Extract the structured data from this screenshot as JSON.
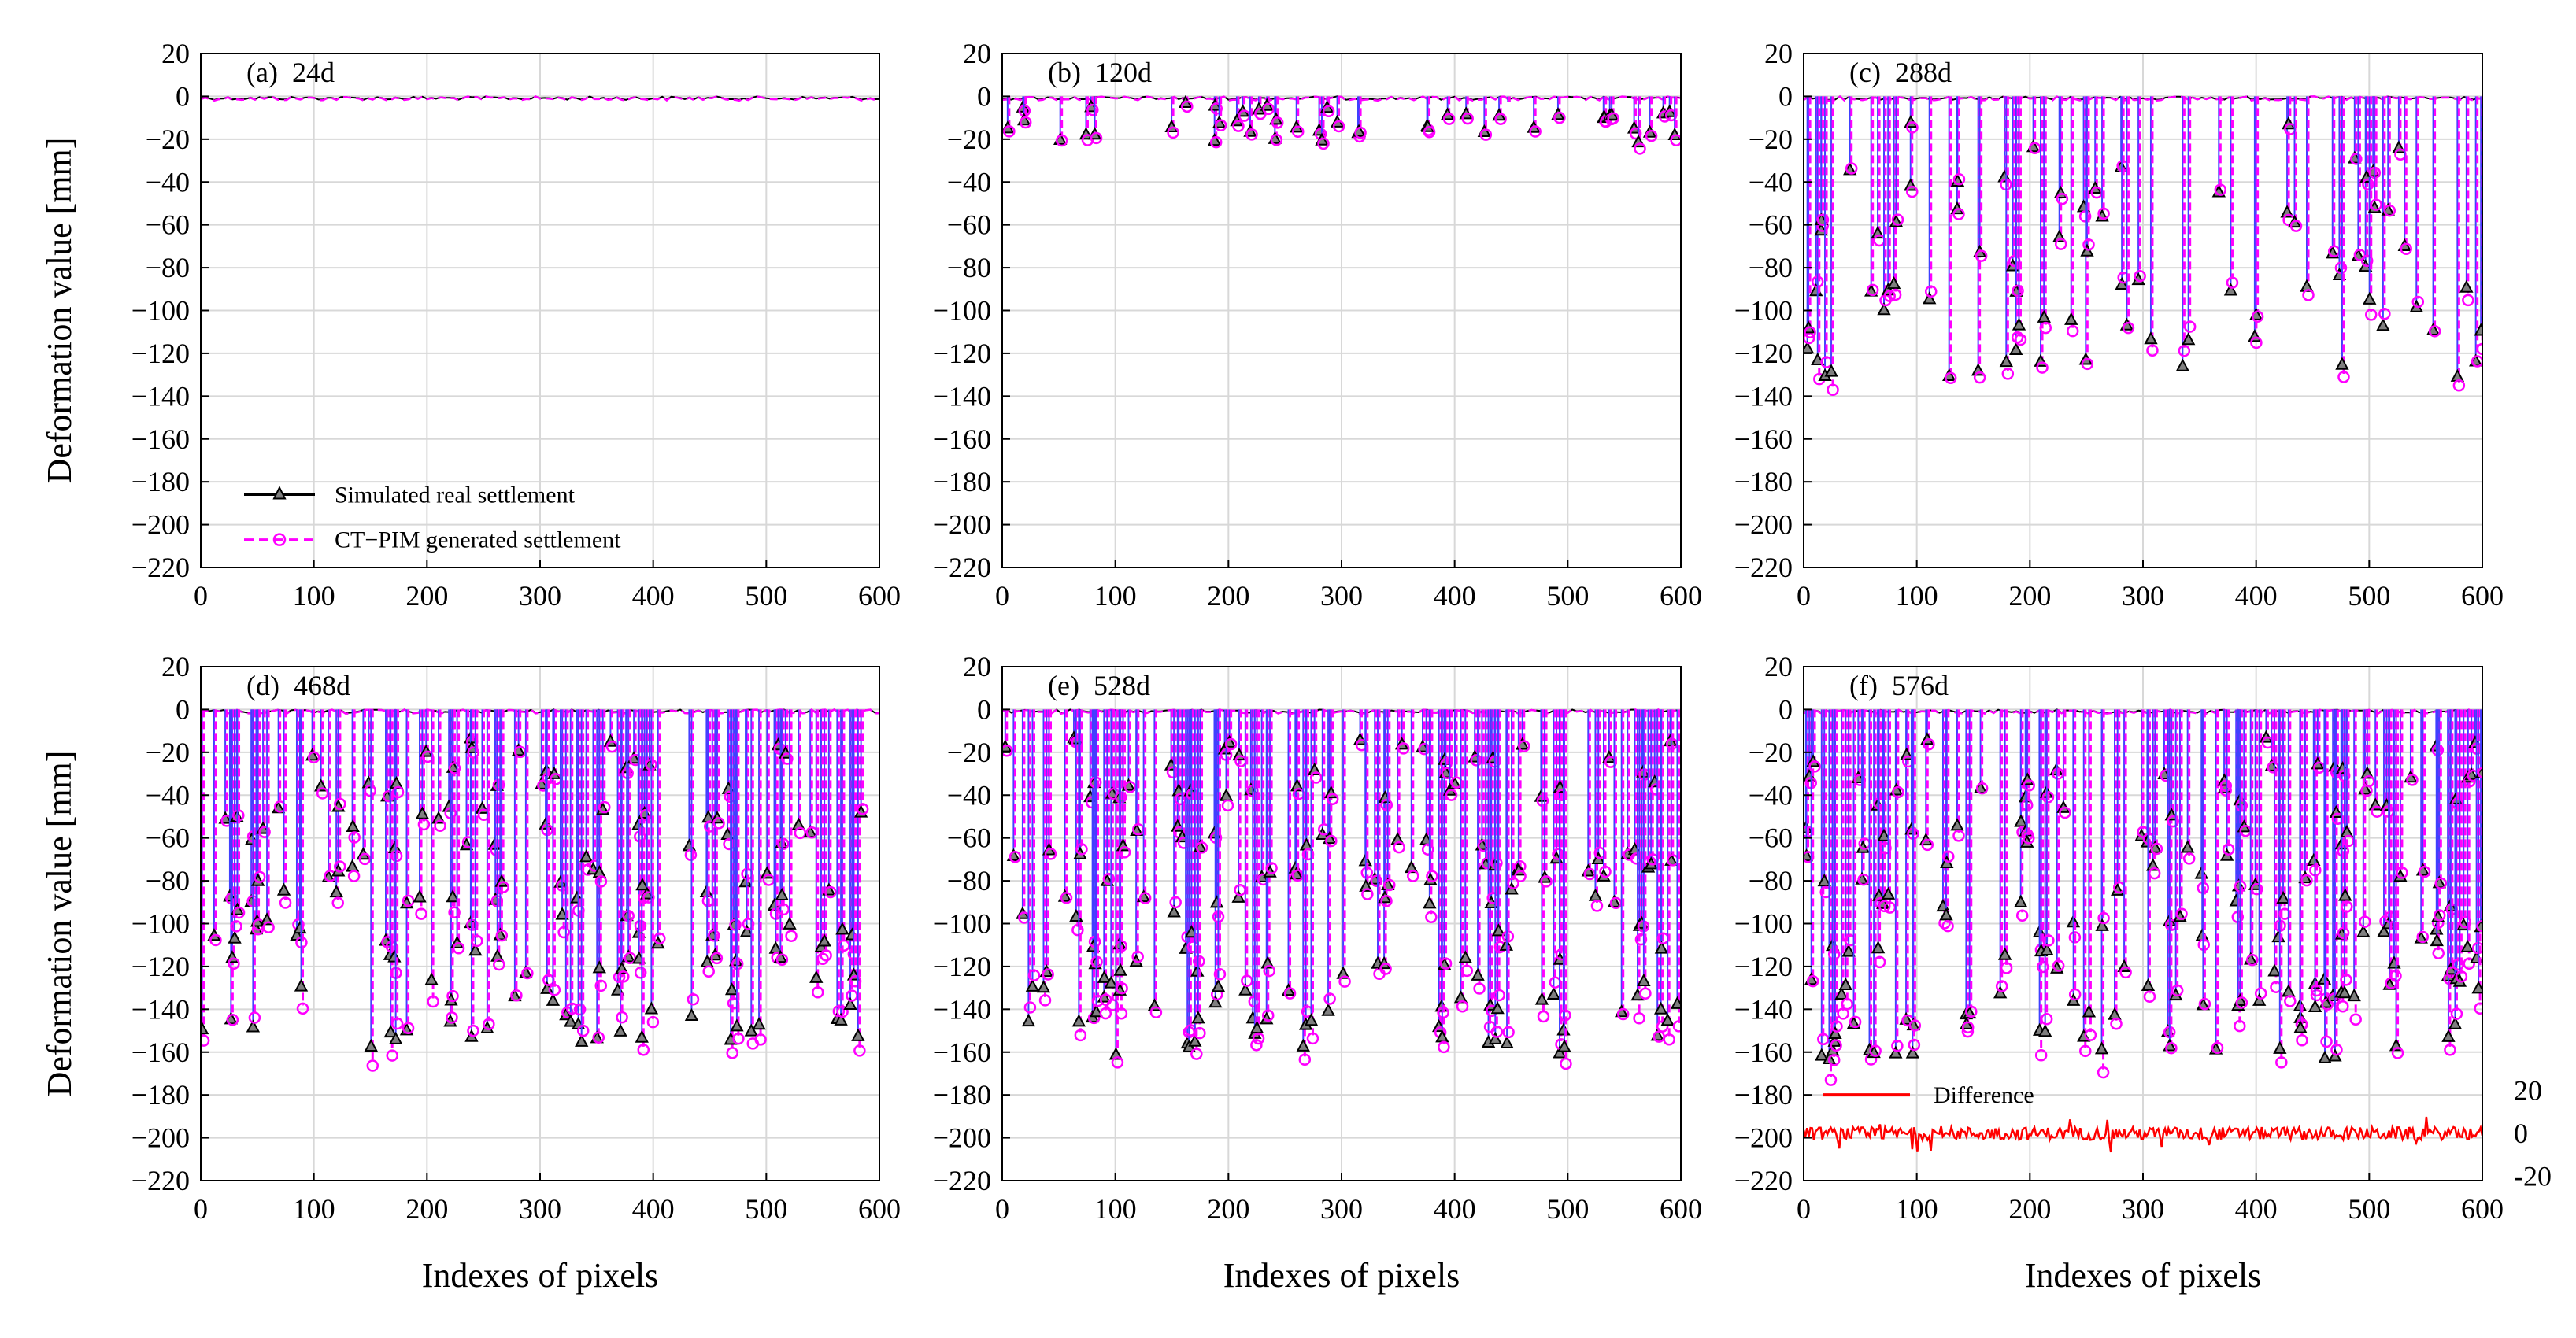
{
  "chart_data": {
    "type": "line",
    "ylabel": "Deformation value [mm]",
    "xlabel": "Indexes of pixels",
    "xlim": [
      0,
      600
    ],
    "ylim": [
      -220,
      20
    ],
    "xticks": [
      0,
      100,
      200,
      300,
      400,
      500,
      600
    ],
    "yticks": [
      20,
      0,
      -20,
      -40,
      -60,
      -80,
      -100,
      -120,
      -140,
      -160,
      -180,
      -200,
      -220
    ],
    "grid": true,
    "legend": {
      "placement": "lower-left of panel (a)",
      "entries": [
        "Simulated real settlement",
        "CT−PIM generated settlement"
      ]
    },
    "series_style": [
      {
        "name": "Simulated real settlement",
        "color": "#000000",
        "marker": "triangle",
        "linestyle": "solid"
      },
      {
        "name": "CT−PIM generated settlement",
        "color": "#ff00ff",
        "marker": "circle",
        "linestyle": "dashed"
      }
    ],
    "panels": [
      {
        "label": "(a)",
        "title": "24d",
        "spike_count": 0,
        "max_depth": 2
      },
      {
        "label": "(b)",
        "title": "120d",
        "spike_count": 45,
        "max_depth": 22
      },
      {
        "label": "(c)",
        "title": "288d",
        "spike_count": 75,
        "max_depth": 135
      },
      {
        "label": "(d)",
        "title": "468d",
        "spike_count": 150,
        "max_depth": 158
      },
      {
        "label": "(e)",
        "title": "528d",
        "spike_count": 160,
        "max_depth": 162
      },
      {
        "label": "(f)",
        "title": "576d",
        "spike_count": 165,
        "max_depth": 165,
        "difference_axis": {
          "label": "Difference",
          "color": "#ff0000",
          "ylim": [
            -20,
            20
          ],
          "ticks": [
            20,
            0,
            -20
          ],
          "baseline_mm": -198,
          "amplitude_range": [
            -9,
            8
          ]
        }
      }
    ]
  }
}
